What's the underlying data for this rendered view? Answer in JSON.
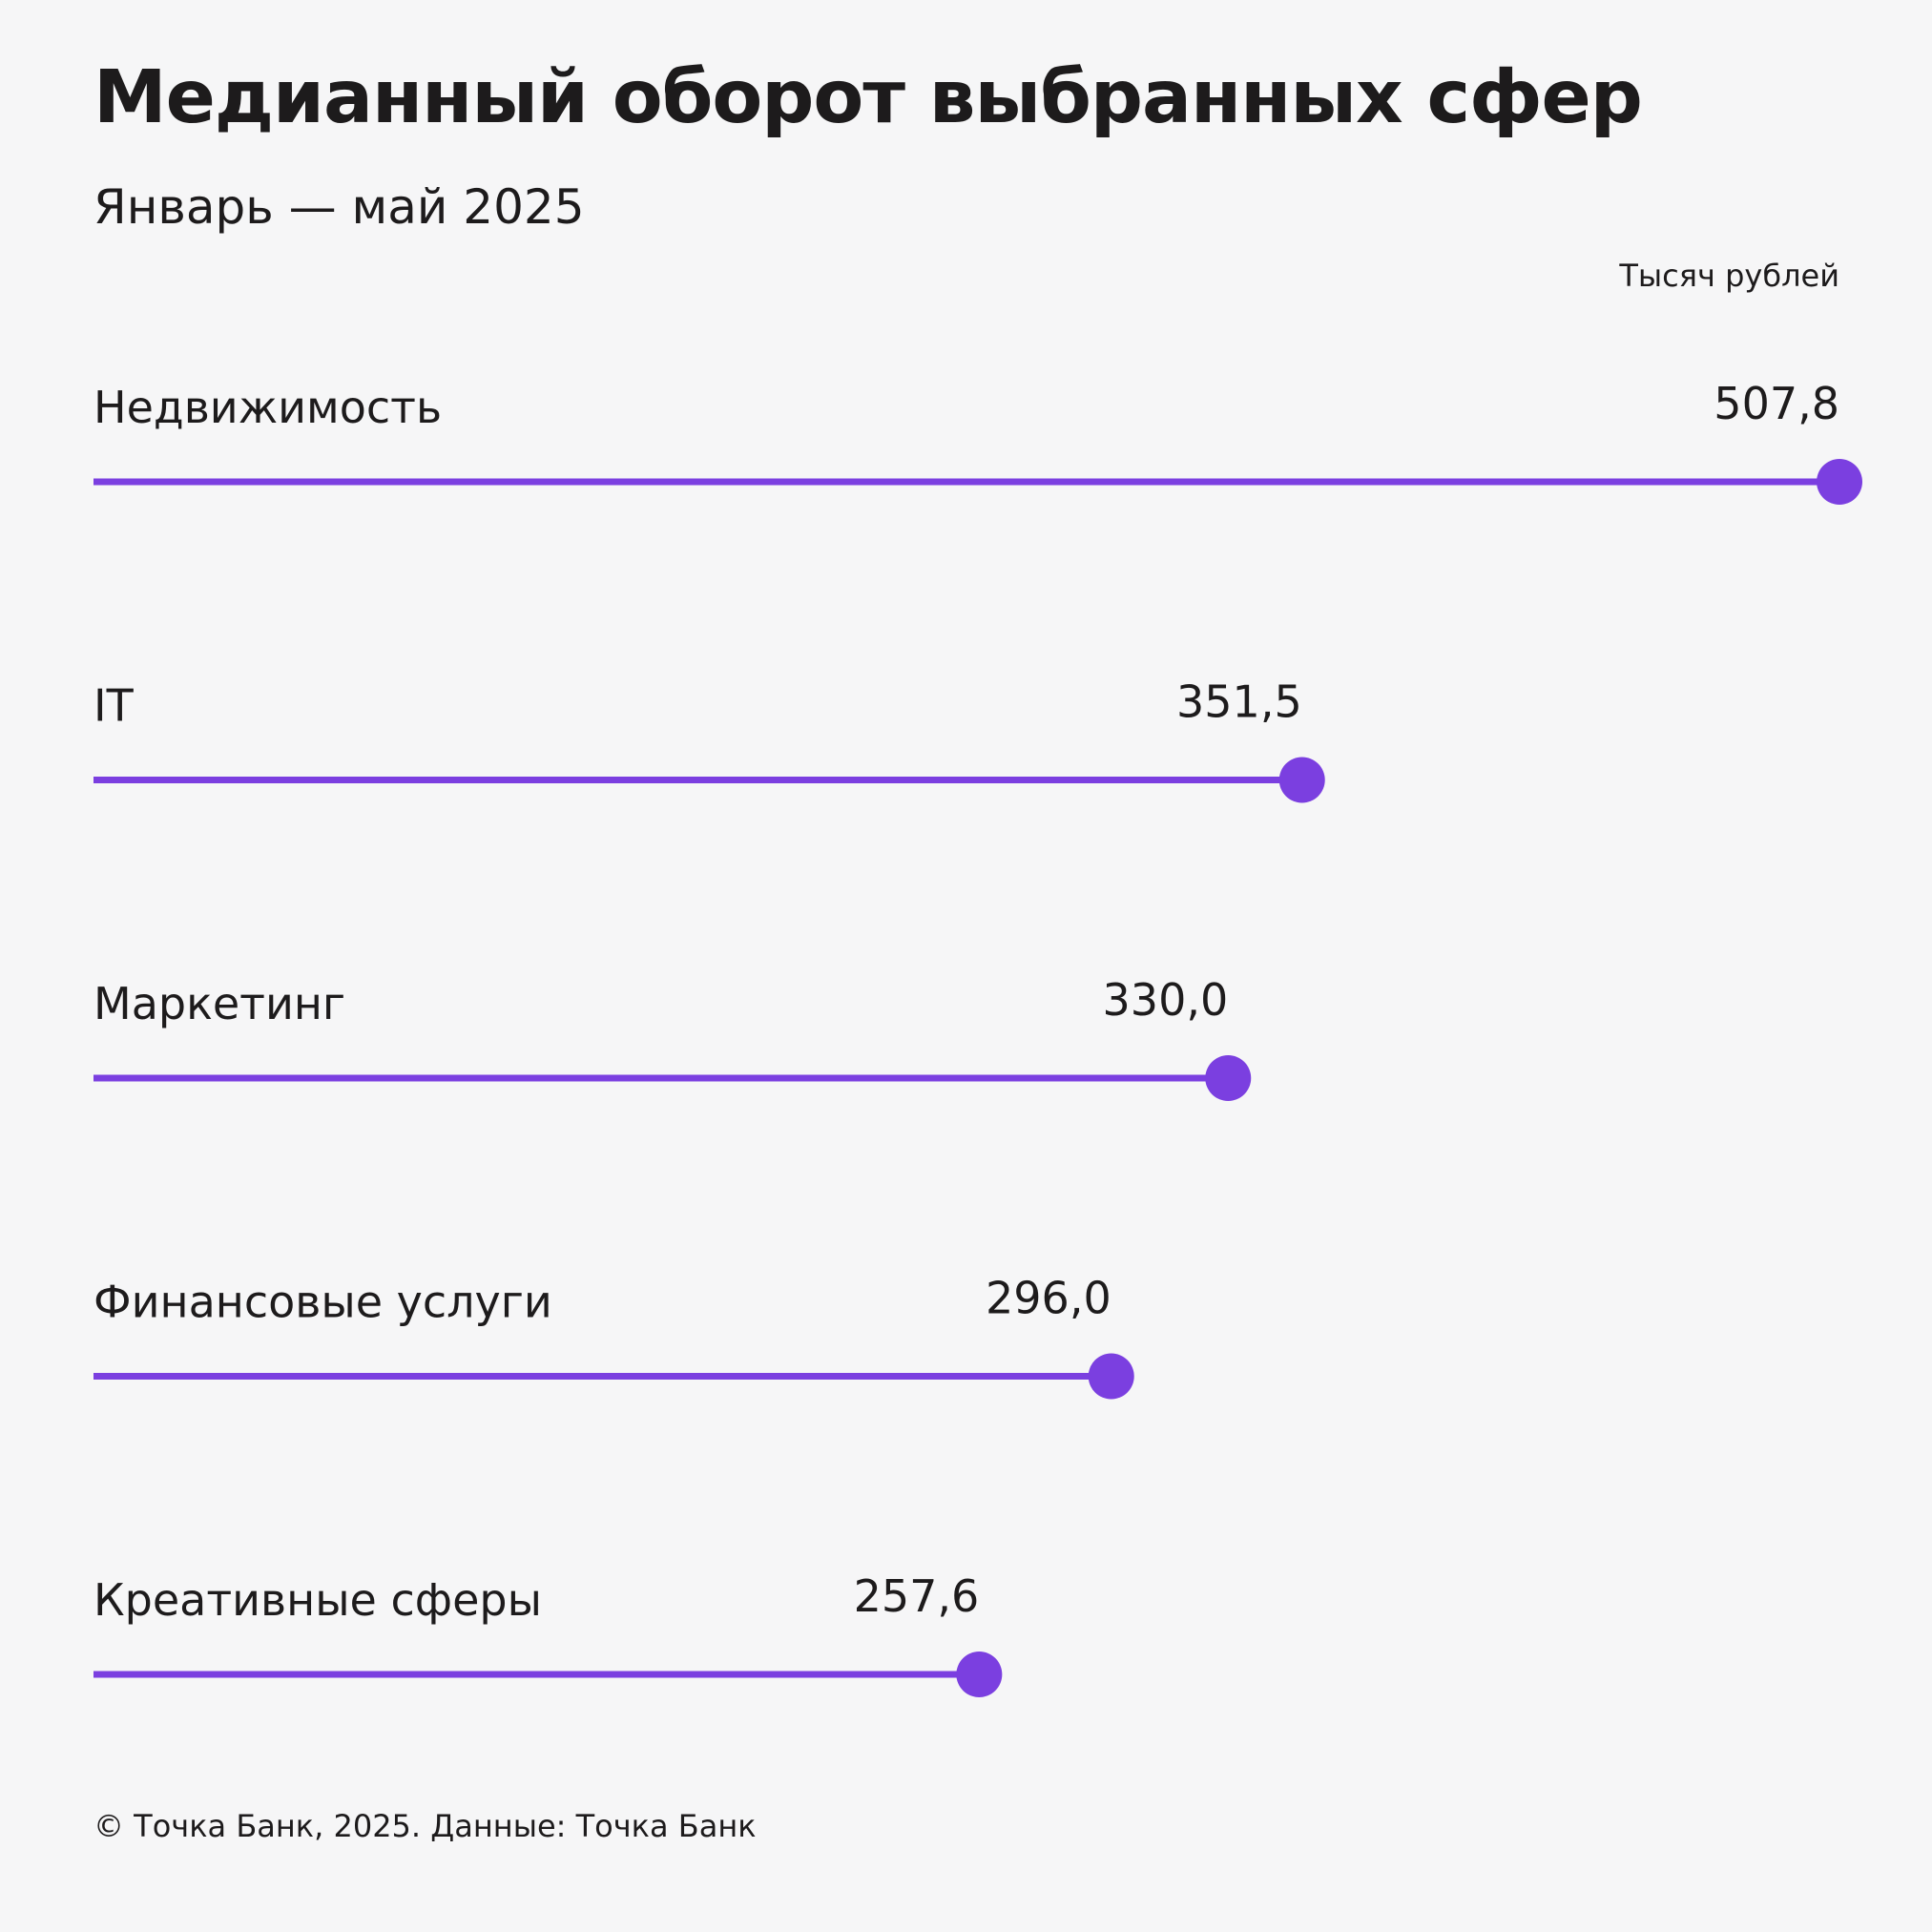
{
  "header": {
    "title": "Медианный оборот выбранных сфер",
    "subtitle": "Январь — май 2025",
    "unit": "Тысяч рублей"
  },
  "footer": {
    "source": "© Точка Банк, 2025. Данные: Точка Банк"
  },
  "colors": {
    "accent": "#7b3fe0",
    "text": "#1d1b1c",
    "background": "#f6f6f7"
  },
  "chart_data": {
    "type": "bar",
    "categories": [
      "Недвижимость",
      "IT",
      "Маркетинг",
      "Финансовые услуги",
      "Креативные сферы"
    ],
    "values": [
      507.8,
      351.5,
      330.0,
      296.0,
      257.6
    ],
    "value_labels": [
      "507,8",
      "351,5",
      "330,0",
      "296,0",
      "257,6"
    ],
    "title": "Медианный оборот выбранных сфер",
    "subtitle": "Январь — май 2025",
    "unit": "Тысяч рублей",
    "orientation": "horizontal",
    "style": "lollipop",
    "xlim": [
      0,
      507.8
    ],
    "grid": false,
    "legend": "none"
  }
}
